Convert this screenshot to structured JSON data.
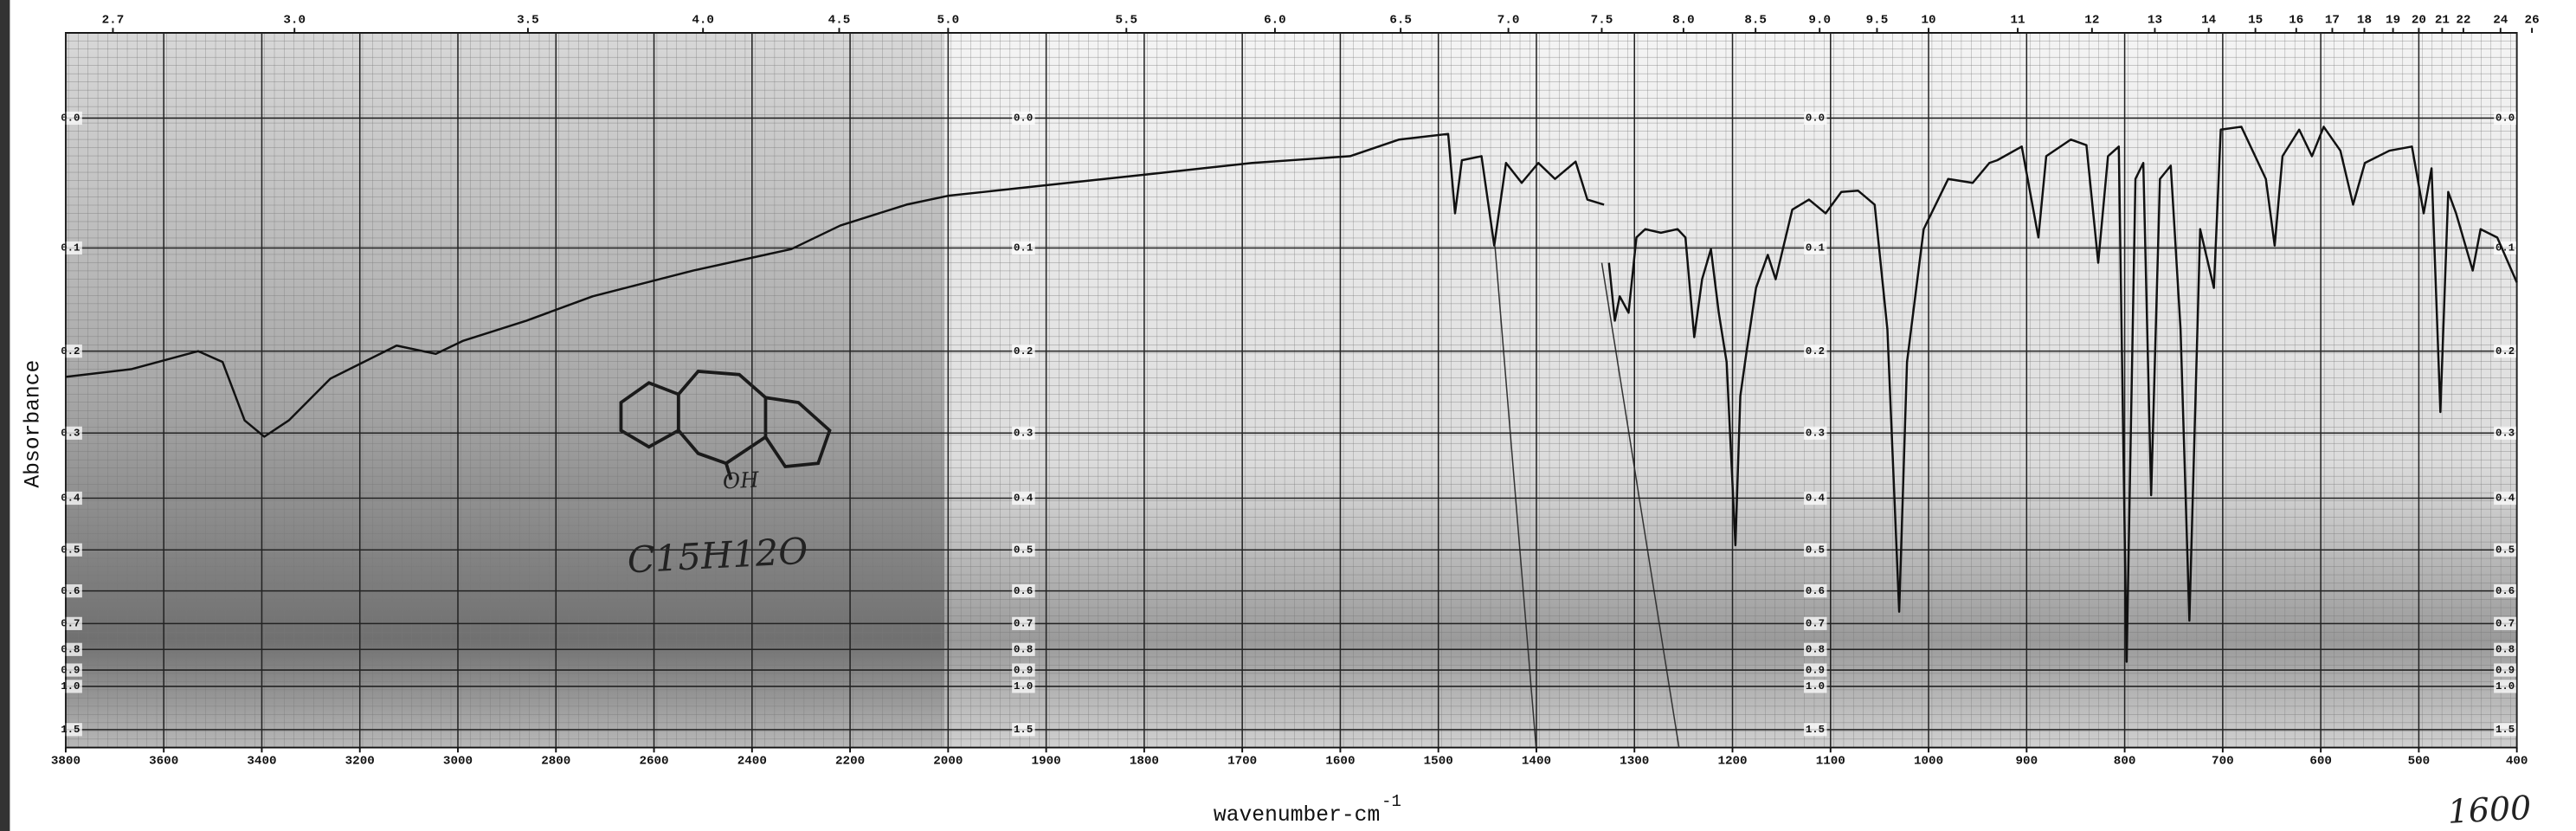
{
  "chart_data": {
    "type": "line",
    "ylabel": "Absorbance",
    "xlabel": "wavenumber-cm",
    "xlabel_superscript": "-1",
    "annotations": [
      "OH",
      "C15H12O",
      "1600"
    ],
    "color": "#111111",
    "xlim": [
      3800,
      400
    ],
    "x_scale_change": {
      "at": 2000,
      "factor": 2
    },
    "xticks": [
      3800,
      3600,
      3400,
      3200,
      3000,
      2800,
      2600,
      2400,
      2200,
      2000,
      1900,
      1800,
      1700,
      1600,
      1500,
      1400,
      1300,
      1200,
      1100,
      1000,
      900,
      800,
      700,
      600,
      500,
      400
    ],
    "x2_transform": "10000/x",
    "x2ticks": [
      2.7,
      {
        "value": 3,
        "label": "3.0"
      },
      3.5,
      {
        "value": 4,
        "label": "4.0"
      },
      4.5,
      {
        "value": 5,
        "label": "5.0"
      },
      5.5,
      {
        "value": 6,
        "label": "6.0"
      },
      6.5,
      {
        "value": 7,
        "label": "7.0"
      },
      7.5,
      {
        "value": 8,
        "label": "8.0"
      },
      8.5,
      {
        "value": 9,
        "label": "9.0"
      },
      9.5,
      10,
      11,
      12,
      13,
      14,
      15,
      16,
      17,
      18,
      19,
      20,
      21,
      22,
      24,
      26
    ],
    "ylim": [
      -0.055,
      2.5
    ],
    "y_inverted": true,
    "yscale": "transmittance",
    "yticks": [
      {
        "value": 0,
        "label": "0.0"
      },
      0.1,
      0.2,
      0.3,
      0.4,
      0.5,
      0.6,
      0.7,
      0.8,
      0.9,
      {
        "value": 1,
        "label": "1.0"
      },
      1.5
    ],
    "grid": true,
    "x": [
      3800,
      3665,
      3530,
      3480,
      3435,
      3395,
      3345,
      3260,
      3125,
      3045,
      2990,
      2860,
      2725,
      2520,
      2320,
      2220,
      2085,
      2000,
      1890,
      1790,
      1690,
      1590,
      1540,
      1490,
      1483,
      1476,
      1456,
      1443,
      1431,
      1415,
      1398,
      1381,
      1360,
      1348,
      1331,
      1328,
      1326,
      1320,
      1315,
      1306,
      1298,
      1289,
      1273,
      1256,
      1248,
      1239,
      1231,
      1222,
      1214,
      1206,
      1197,
      1192,
      1186,
      1176,
      1164,
      1156,
      1139,
      1122,
      1105,
      1089,
      1072,
      1055,
      1042,
      1030,
      1022,
      1005,
      980,
      955,
      938,
      930,
      905,
      888,
      880,
      855,
      839,
      827,
      817,
      806,
      798,
      789,
      781,
      773,
      764,
      753,
      743,
      734,
      723,
      709,
      702,
      681,
      656,
      647,
      639,
      622,
      609,
      597,
      580,
      567,
      555,
      530,
      507,
      495,
      487,
      478,
      470,
      462,
      445,
      437,
      420,
      400
    ],
    "values": [
      0.229,
      0.22,
      0.2,
      0.212,
      0.283,
      0.305,
      0.283,
      0.231,
      0.194,
      0.203,
      0.189,
      0.168,
      0.144,
      0.12,
      0.101,
      0.081,
      0.064,
      0.057,
      0.048,
      0.04,
      0.032,
      0.027,
      0.015,
      0.011,
      0.071,
      0.03,
      0.027,
      0.098,
      0.032,
      0.047,
      0.032,
      0.044,
      0.031,
      0.06,
      0.064,
      null,
      0.113,
      0.168,
      0.144,
      0.16,
      0.091,
      0.084,
      0.087,
      0.084,
      0.091,
      0.185,
      0.128,
      0.101,
      0.16,
      0.212,
      0.49,
      0.252,
      0.203,
      0.136,
      0.106,
      0.128,
      0.068,
      0.06,
      0.071,
      0.054,
      0.053,
      0.064,
      0.177,
      0.661,
      0.212,
      0.084,
      0.044,
      0.047,
      0.032,
      0.03,
      0.02,
      0.091,
      0.027,
      0.015,
      0.019,
      0.113,
      0.027,
      0.02,
      0.857,
      0.044,
      0.032,
      0.395,
      0.044,
      0.034,
      0.177,
      0.69,
      0.084,
      0.136,
      0.008,
      0.006,
      0.044,
      0.098,
      0.027,
      0.008,
      0.027,
      0.006,
      0.023,
      0.064,
      0.032,
      0.023,
      0.02,
      0.071,
      0.036,
      0.272,
      0.054,
      0.071,
      0.12,
      0.084,
      0.091,
      0.131
    ]
  }
}
